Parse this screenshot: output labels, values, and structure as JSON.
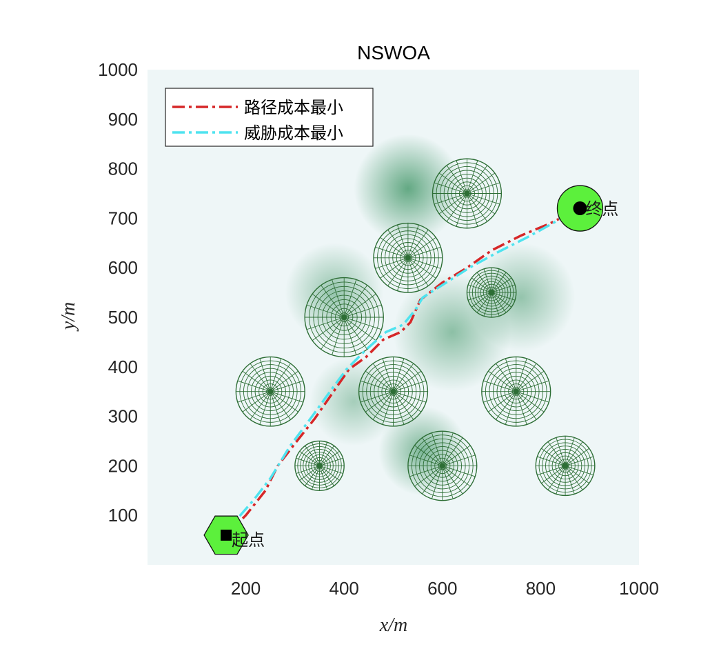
{
  "chart_data": {
    "type": "line",
    "title": "NSWOA",
    "xlabel": "x/m",
    "ylabel": "y/m",
    "xlim": [
      0,
      1000
    ],
    "ylim": [
      0,
      1000
    ],
    "xticks": [
      200,
      400,
      600,
      800,
      1000
    ],
    "yticks": [
      100,
      200,
      300,
      400,
      500,
      600,
      700,
      800,
      900,
      1000
    ],
    "grid": false,
    "legend_position": "top-left",
    "background_heatmap": {
      "colormap": [
        "#eef6f7",
        "#2e8b57"
      ],
      "peaks": [
        {
          "x": 530,
          "y": 760,
          "spread": 110,
          "intensity": 0.85
        },
        {
          "x": 380,
          "y": 550,
          "spread": 100,
          "intensity": 0.55
        },
        {
          "x": 420,
          "y": 330,
          "spread": 90,
          "intensity": 0.45
        },
        {
          "x": 620,
          "y": 470,
          "spread": 120,
          "intensity": 0.6
        },
        {
          "x": 560,
          "y": 230,
          "spread": 90,
          "intensity": 0.7
        },
        {
          "x": 760,
          "y": 540,
          "spread": 110,
          "intensity": 0.55
        }
      ]
    },
    "threats": [
      {
        "x": 650,
        "y": 750,
        "r": 70
      },
      {
        "x": 530,
        "y": 620,
        "r": 70
      },
      {
        "x": 700,
        "y": 550,
        "r": 50
      },
      {
        "x": 400,
        "y": 500,
        "r": 80
      },
      {
        "x": 250,
        "y": 350,
        "r": 70
      },
      {
        "x": 500,
        "y": 350,
        "r": 70
      },
      {
        "x": 750,
        "y": 350,
        "r": 70
      },
      {
        "x": 350,
        "y": 200,
        "r": 50
      },
      {
        "x": 600,
        "y": 200,
        "r": 70
      },
      {
        "x": 850,
        "y": 200,
        "r": 60
      }
    ],
    "start": {
      "x": 160,
      "y": 60,
      "label": "起点"
    },
    "end": {
      "x": 880,
      "y": 720,
      "label": "终点"
    },
    "series": [
      {
        "name": "路径成本最小",
        "color": "#d62728",
        "dash": "18,6,4,6",
        "points": [
          [
            160,
            60
          ],
          [
            200,
            100
          ],
          [
            240,
            150
          ],
          [
            265,
            200
          ],
          [
            300,
            245
          ],
          [
            340,
            295
          ],
          [
            375,
            345
          ],
          [
            410,
            395
          ],
          [
            445,
            420
          ],
          [
            480,
            455
          ],
          [
            515,
            470
          ],
          [
            535,
            490
          ],
          [
            555,
            535
          ],
          [
            600,
            570
          ],
          [
            650,
            600
          ],
          [
            700,
            635
          ],
          [
            760,
            665
          ],
          [
            820,
            690
          ],
          [
            860,
            710
          ],
          [
            880,
            720
          ]
        ]
      },
      {
        "name": "威胁成本最小",
        "color": "#4fe3ef",
        "dash": "18,6,4,6",
        "points": [
          [
            160,
            60
          ],
          [
            180,
            90
          ],
          [
            215,
            130
          ],
          [
            250,
            175
          ],
          [
            290,
            240
          ],
          [
            335,
            300
          ],
          [
            375,
            355
          ],
          [
            405,
            395
          ],
          [
            445,
            435
          ],
          [
            485,
            470
          ],
          [
            520,
            485
          ],
          [
            545,
            515
          ],
          [
            560,
            540
          ],
          [
            600,
            565
          ],
          [
            655,
            600
          ],
          [
            710,
            630
          ],
          [
            770,
            660
          ],
          [
            825,
            690
          ],
          [
            860,
            712
          ],
          [
            880,
            720
          ]
        ]
      }
    ]
  }
}
